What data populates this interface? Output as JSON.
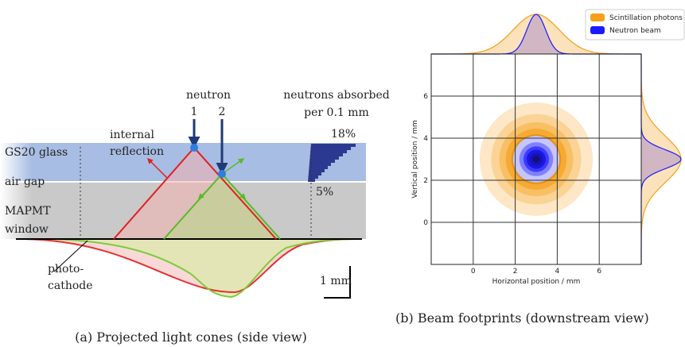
{
  "diagram": {
    "labels": {
      "neutron": "neutron",
      "n1": "1",
      "n2": "2",
      "absorbed1": "neutrons absorbed",
      "absorbed2": "per 0.1 mm",
      "max": "18%",
      "min": "5%",
      "internal1": "internal",
      "internal2": "reflection",
      "glass": "GS20 glass",
      "airgap": "air gap",
      "mapmt1": "MAPMT",
      "mapmt2": "window",
      "photo1": "photo-",
      "photo2": "cathode",
      "scale": "1 mm"
    }
  },
  "chart_data": {
    "type": "contour",
    "xlabel": "Horizontal position / mm",
    "ylabel": "Vertical position / mm",
    "xlim": [
      -2,
      8
    ],
    "ylim": [
      -2,
      8
    ],
    "xticks": [
      0,
      2,
      4,
      6
    ],
    "yticks": [
      0,
      2,
      4,
      6
    ],
    "grid": true,
    "legend": "upper right",
    "series": [
      {
        "name": "Scintillation photons",
        "color": "#f5a01a",
        "center": [
          3,
          3
        ],
        "sigma": 1.1
      },
      {
        "name": "Neutron beam",
        "color": "#1a1aff",
        "center": [
          3,
          3
        ],
        "sigma": 0.45
      }
    ]
  },
  "captions": {
    "a": "(a) Projected light cones (side view)",
    "b": "(b) Beam footprints (downstream view)"
  }
}
